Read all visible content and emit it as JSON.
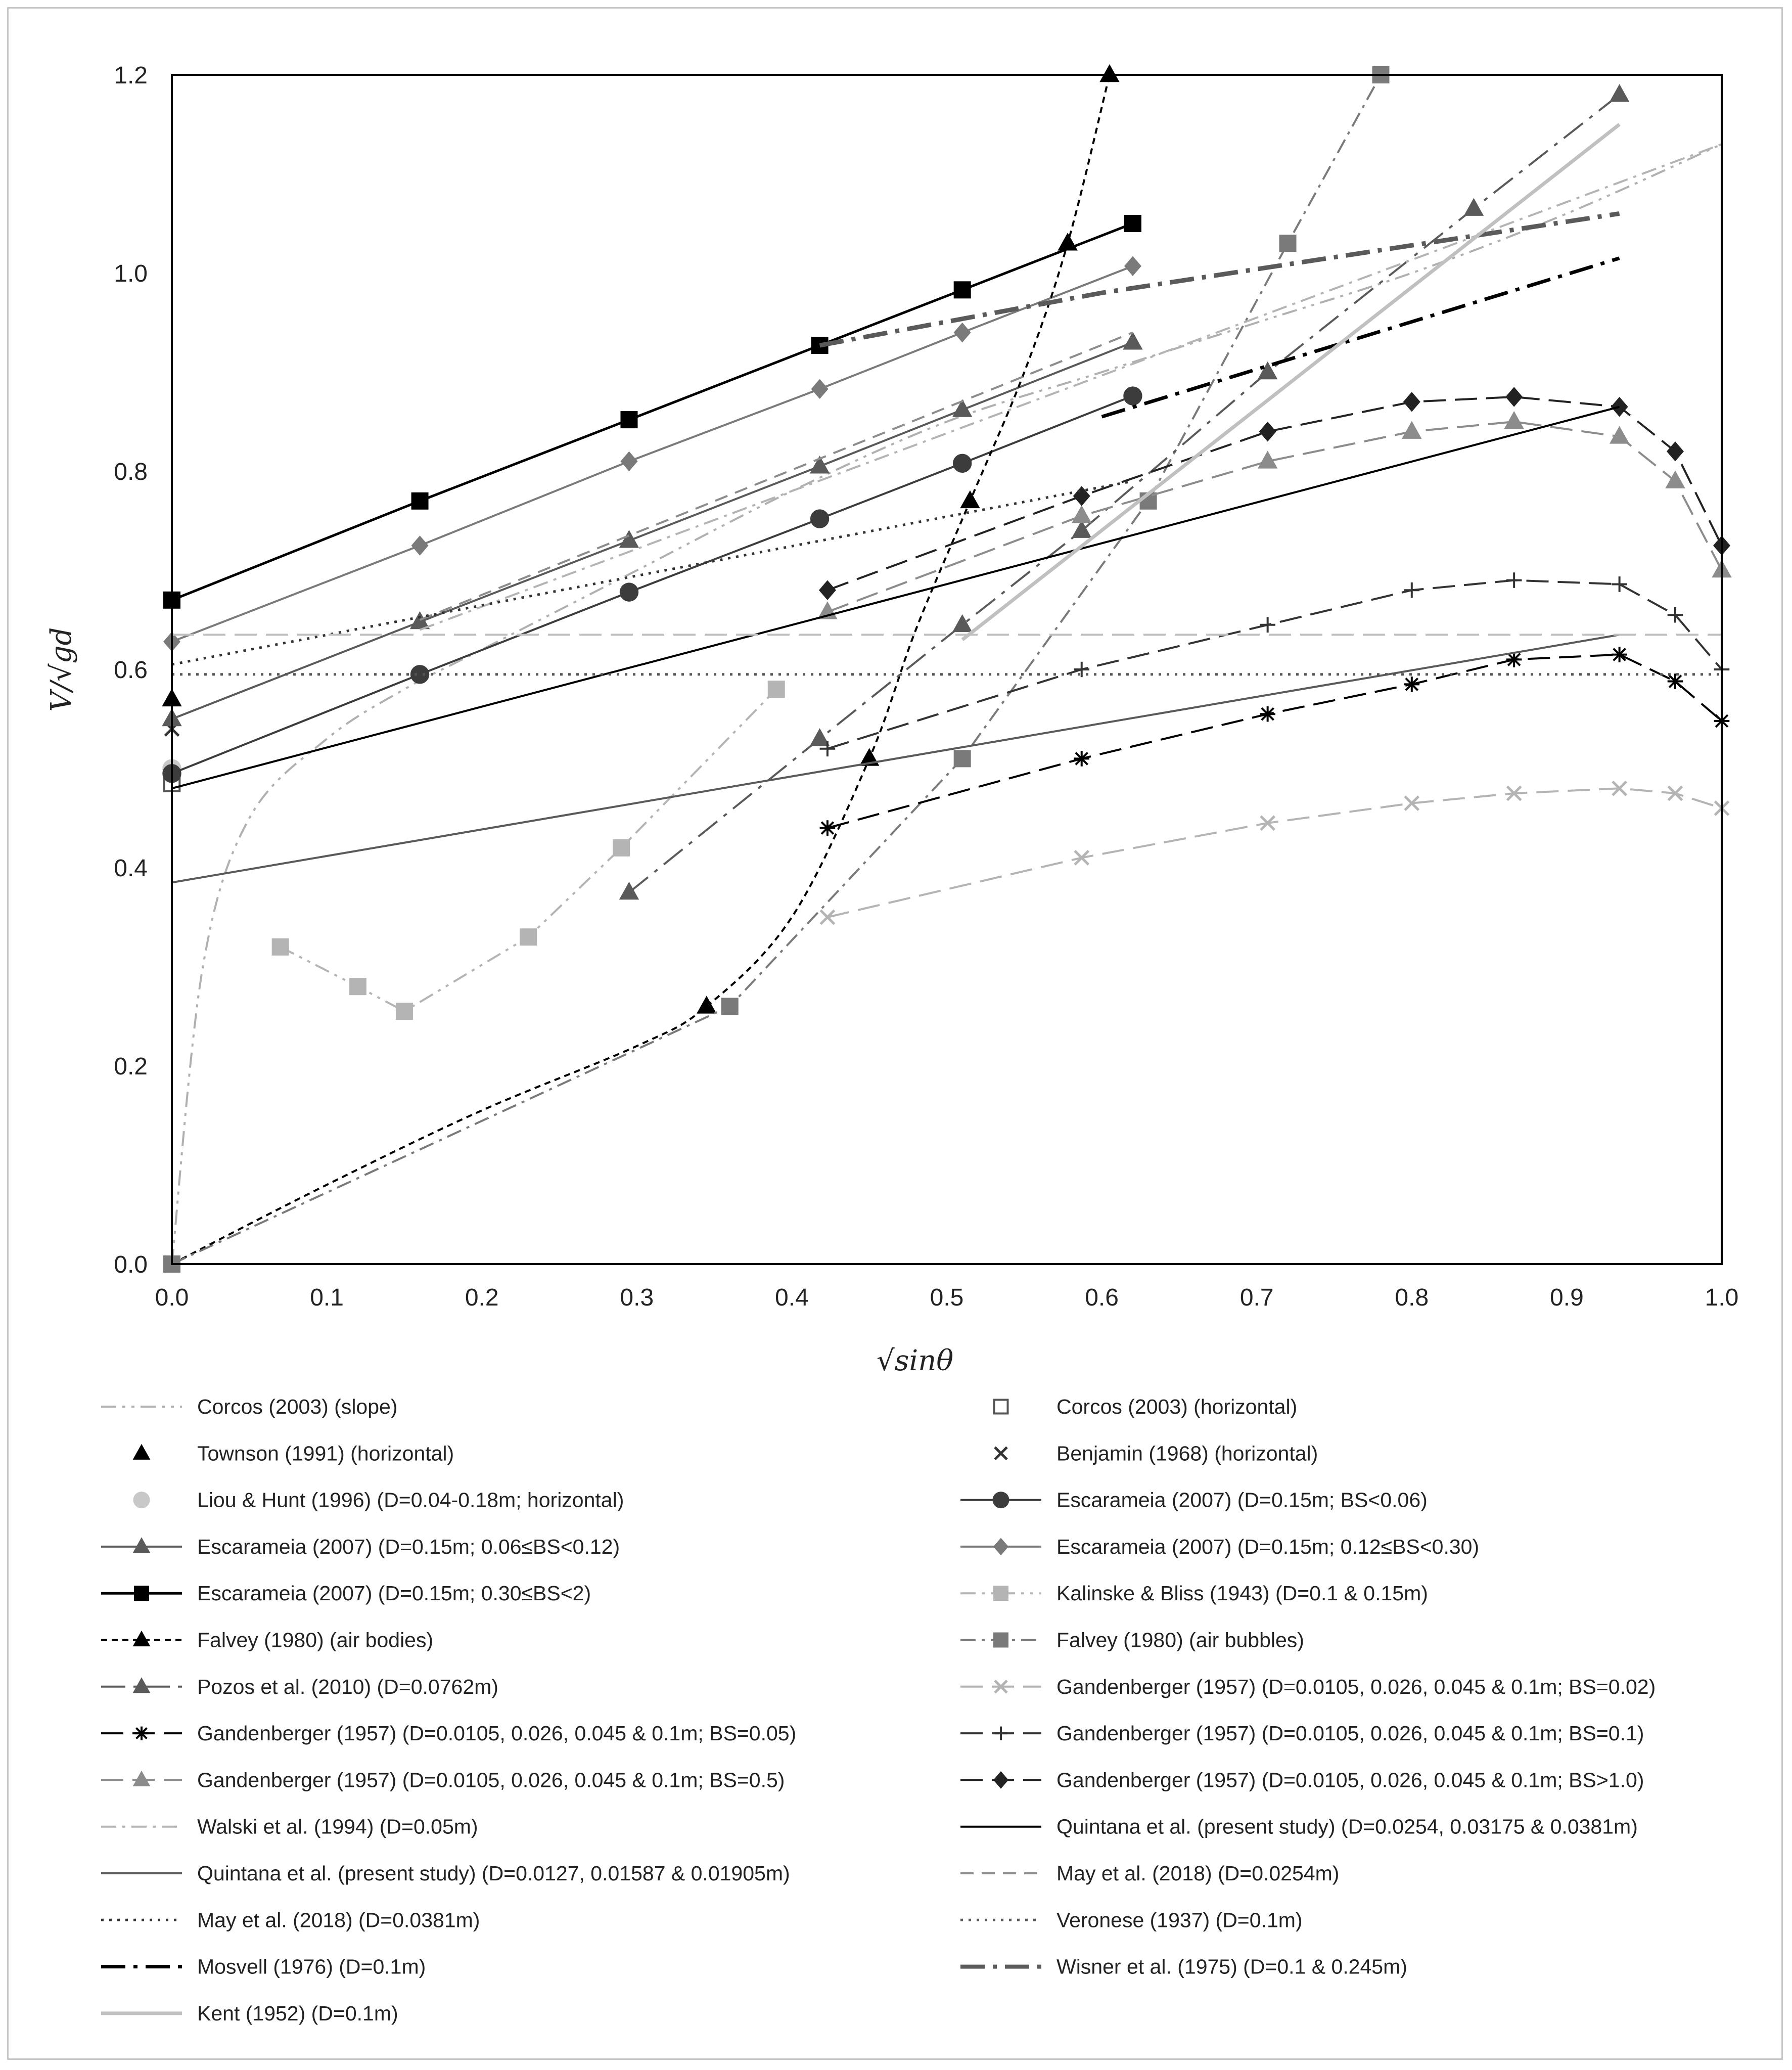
{
  "chart_data": {
    "type": "line",
    "title": "",
    "xlabel": "√sinθ",
    "ylabel": "V/√gd",
    "xlim": [
      0,
      1.0
    ],
    "ylim": [
      0,
      1.2
    ],
    "xticks": [
      0.0,
      0.1,
      0.2,
      0.3,
      0.4,
      0.5,
      0.6,
      0.7,
      0.8,
      0.9,
      1.0
    ],
    "yticks": [
      0.0,
      0.2,
      0.4,
      0.6,
      0.8,
      1.0,
      1.2
    ],
    "xtick_labels": [
      "0.0",
      "0.1",
      "0.2",
      "0.3",
      "0.4",
      "0.5",
      "0.6",
      "0.7",
      "0.8",
      "0.9",
      "1.0"
    ],
    "ytick_labels": [
      "0.0",
      "0.2",
      "0.4",
      "0.6",
      "0.8",
      "1.0",
      "1.2"
    ],
    "grid": false,
    "legend_position": "bottom",
    "series": [
      {
        "name": "Corcos (2003) (slope)",
        "color": "#b0b0b0",
        "dash": "dashdotdot",
        "marker": "none",
        "width": 4,
        "smooth": true,
        "x": [
          0,
          0.02,
          0.05,
          0.1,
          0.15,
          0.2,
          0.3,
          0.4,
          0.5,
          0.6,
          0.7,
          0.8,
          0.9,
          1.0
        ],
        "y": [
          0,
          0.3,
          0.45,
          0.53,
          0.58,
          0.62,
          0.7,
          0.78,
          0.85,
          0.9,
          0.95,
          1.0,
          1.06,
          1.13
        ]
      },
      {
        "name": "Corcos (2003) (horizontal)",
        "color": "#555555",
        "dash": "none",
        "marker": "square-open",
        "width": 0,
        "x": [
          0
        ],
        "y": [
          0.485
        ]
      },
      {
        "name": "Townson (1991) (horizontal)",
        "color": "#000000",
        "dash": "none",
        "marker": "triangle",
        "width": 0,
        "x": [
          0
        ],
        "y": [
          0.57
        ]
      },
      {
        "name": "Benjamin (1968) (horizontal)",
        "color": "#333333",
        "dash": "none",
        "marker": "x",
        "width": 0,
        "x": [
          0
        ],
        "y": [
          0.54
        ]
      },
      {
        "name": "Liou & Hunt (1996) (D=0.04-0.18m; horizontal)",
        "color": "#c8c8c8",
        "dash": "none",
        "marker": "circle",
        "width": 0,
        "x": [
          0
        ],
        "y": [
          0.5
        ]
      },
      {
        "name": "Escarameia (2007) (D=0.15m; BS<0.06)",
        "color": "#3c3c3c",
        "dash": "solid",
        "marker": "circle",
        "width": 4,
        "x": [
          0,
          0.16,
          0.295,
          0.418,
          0.51,
          0.62
        ],
        "y": [
          0.495,
          0.595,
          0.678,
          0.752,
          0.808,
          0.876
        ]
      },
      {
        "name": "Escarameia (2007) (D=0.15m; 0.06≤BS<0.12)",
        "color": "#5a5a5a",
        "dash": "solid",
        "marker": "triangle",
        "width": 4,
        "x": [
          0,
          0.16,
          0.295,
          0.418,
          0.51,
          0.62
        ],
        "y": [
          0.55,
          0.648,
          0.73,
          0.805,
          0.862,
          0.93
        ]
      },
      {
        "name": "Escarameia (2007) (D=0.15m; 0.12≤BS<0.30)",
        "color": "#7a7a7a",
        "dash": "solid",
        "marker": "diamond",
        "width": 4,
        "x": [
          0,
          0.16,
          0.295,
          0.418,
          0.51,
          0.62
        ],
        "y": [
          0.628,
          0.725,
          0.81,
          0.883,
          0.94,
          1.007
        ]
      },
      {
        "name": "Escarameia (2007) (D=0.15m; 0.30≤BS<2)",
        "color": "#000000",
        "dash": "solid",
        "marker": "square",
        "width": 5,
        "x": [
          0,
          0.16,
          0.295,
          0.418,
          0.51,
          0.62
        ],
        "y": [
          0.67,
          0.77,
          0.852,
          0.927,
          0.983,
          1.05
        ]
      },
      {
        "name": "Kalinske & Bliss (1943) (D=0.1 & 0.15m)",
        "color": "#b4b4b4",
        "dash": "dashdotdot",
        "marker": "square",
        "width": 4,
        "x": [
          0.07,
          0.12,
          0.15,
          0.23,
          0.29,
          0.39
        ],
        "y": [
          0.32,
          0.28,
          0.255,
          0.33,
          0.42,
          0.58
        ]
      },
      {
        "name": "Falvey (1980) (air bodies)",
        "color": "#000000",
        "dash": "shortdash",
        "marker": "triangle",
        "width": 4,
        "smooth": true,
        "x": [
          0,
          0.1,
          0.2,
          0.3,
          0.345,
          0.4,
          0.45,
          0.48,
          0.515,
          0.55,
          0.578,
          0.605
        ],
        "y": [
          0,
          0.08,
          0.155,
          0.22,
          0.26,
          0.35,
          0.51,
          0.64,
          0.77,
          0.9,
          1.03,
          1.2
        ]
      },
      {
        "name": "Falvey (1980) (air bubbles)",
        "color": "#7a7a7a",
        "dash": "dashdot",
        "marker": "square",
        "width": 4,
        "x": [
          0,
          0.36,
          0.51,
          0.63,
          0.72,
          0.78
        ],
        "y": [
          0,
          0.26,
          0.51,
          0.77,
          1.03,
          1.2
        ]
      },
      {
        "name": "Pozos et al. (2010) (D=0.0762m)",
        "color": "#5a5a5a",
        "dash": "longdashdot",
        "marker": "triangle",
        "width": 4,
        "x": [
          0.295,
          0.418,
          0.51,
          0.587,
          0.707,
          0.84,
          0.934
        ],
        "y": [
          0.375,
          0.53,
          0.645,
          0.74,
          0.9,
          1.065,
          1.18
        ]
      },
      {
        "name": "Gandenberger (1957) (D=0.0105, 0.026, 0.045 & 0.1m; BS=0.02)",
        "color": "#b4b4b4",
        "dash": "longdash",
        "marker": "x",
        "width": 4,
        "x": [
          0.423,
          0.587,
          0.707,
          0.8,
          0.866,
          0.934,
          0.97,
          1.0
        ],
        "y": [
          0.35,
          0.41,
          0.445,
          0.465,
          0.475,
          0.48,
          0.475,
          0.46
        ]
      },
      {
        "name": "Gandenberger (1957) (D=0.0105, 0.026, 0.045 & 0.1m; BS=0.05)",
        "color": "#000000",
        "dash": "longdash",
        "marker": "star",
        "width": 4,
        "x": [
          0.423,
          0.587,
          0.707,
          0.8,
          0.866,
          0.934,
          0.97,
          1.0
        ],
        "y": [
          0.44,
          0.51,
          0.555,
          0.585,
          0.61,
          0.615,
          0.588,
          0.548
        ]
      },
      {
        "name": "Gandenberger (1957) (D=0.0105, 0.026, 0.045 & 0.1m; BS=0.1)",
        "color": "#333333",
        "dash": "longdash",
        "marker": "plus",
        "width": 4,
        "x": [
          0.423,
          0.587,
          0.707,
          0.8,
          0.866,
          0.934,
          0.97,
          1.0
        ],
        "y": [
          0.52,
          0.6,
          0.645,
          0.68,
          0.69,
          0.686,
          0.655,
          0.6
        ]
      },
      {
        "name": "Gandenberger (1957) (D=0.0105, 0.026, 0.045 & 0.1m; BS=0.5)",
        "color": "#8c8c8c",
        "dash": "longdash",
        "marker": "triangle",
        "width": 4,
        "x": [
          0.423,
          0.587,
          0.707,
          0.8,
          0.866,
          0.934,
          0.97,
          1.0
        ],
        "y": [
          0.658,
          0.755,
          0.81,
          0.84,
          0.85,
          0.835,
          0.79,
          0.7
        ]
      },
      {
        "name": "Gandenberger (1957) (D=0.0105, 0.026, 0.045 & 0.1m; BS>1.0)",
        "color": "#222222",
        "dash": "longdash",
        "marker": "diamond",
        "width": 4,
        "x": [
          0.423,
          0.587,
          0.707,
          0.8,
          0.866,
          0.934,
          0.97,
          1.0
        ],
        "y": [
          0.68,
          0.775,
          0.84,
          0.87,
          0.875,
          0.865,
          0.82,
          0.725
        ]
      },
      {
        "name": "Walski et al. (1994) (D=0.05m)",
        "color": "#b4b4b4",
        "dash": "dashdot",
        "marker": "none",
        "width": 4,
        "x": [
          0.16,
          1.0
        ],
        "y": [
          0.64,
          1.13
        ]
      },
      {
        "name": "Quintana et al. (present study) (D=0.0254, 0.03175 & 0.0381m)",
        "color": "#000000",
        "dash": "solid",
        "marker": "none",
        "width": 4,
        "x": [
          0,
          0.934
        ],
        "y": [
          0.48,
          0.865
        ]
      },
      {
        "name": "Quintana et al. (present study) (D=0.0127, 0.01587 & 0.01905m)",
        "color": "#5a5a5a",
        "dash": "solid",
        "marker": "none",
        "width": 4,
        "x": [
          0,
          0.934
        ],
        "y": [
          0.385,
          0.635
        ]
      },
      {
        "name": "May et al. (2018) (D=0.0254m)",
        "color": "#8c8c8c",
        "dash": "dash",
        "marker": "none",
        "width": 4,
        "x": [
          0.16,
          0.62
        ],
        "y": [
          0.65,
          0.94
        ]
      },
      {
        "name": "May et al. (2018) (D=0.0381m)",
        "color": "#333333",
        "dash": "dot",
        "marker": "none",
        "width": 5,
        "x": [
          0,
          0.62
        ],
        "y": [
          0.605,
          0.79
        ]
      },
      {
        "name": "Veronese (1937) (D=0.1m)",
        "color": "#555555",
        "dash": "dot",
        "marker": "none",
        "width": 5,
        "x": [
          0,
          1.0
        ],
        "y": [
          0.595,
          0.595
        ]
      },
      {
        "name": "Mosvell (1976) (D=0.1m)",
        "color": "#000000",
        "dash": "longdashdot",
        "marker": "none",
        "width": 7,
        "x": [
          0.6,
          0.934
        ],
        "y": [
          0.855,
          1.015
        ]
      },
      {
        "name": "Wisner et al. (1975) (D=0.1 & 0.245m)",
        "color": "#5a5a5a",
        "dash": "longdashdot",
        "marker": "none",
        "width": 9,
        "x": [
          0.418,
          0.6,
          0.934
        ],
        "y": [
          0.927,
          0.98,
          1.06
        ]
      },
      {
        "name": "Kent (1952) (D=0.1m)",
        "color": "#c0c0c0",
        "dash": "solid",
        "marker": "none",
        "width": 7,
        "x": [
          0.51,
          0.934
        ],
        "y": [
          0.63,
          1.15
        ]
      },
      {
        "name": "",
        "color": "#c0c0c0",
        "dash": "longdash",
        "marker": "none",
        "width": 4,
        "hidden_legend": true,
        "x": [
          0,
          1.0
        ],
        "y": [
          0.635,
          0.635
        ]
      }
    ]
  }
}
